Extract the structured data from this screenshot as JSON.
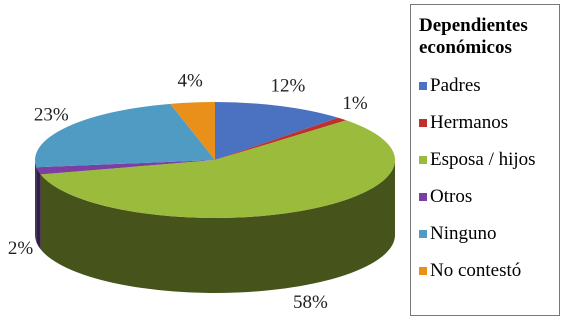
{
  "chart_data": {
    "type": "pie",
    "legend_title": "Dependientes económicos",
    "categories": [
      "Padres",
      "Hermanos",
      "Esposa / hijos",
      "Otros",
      "Ninguno",
      "No contestó"
    ],
    "values": [
      12,
      1,
      58,
      2,
      23,
      4
    ],
    "value_labels": [
      "12%",
      "1%",
      "58%",
      "2%",
      "23%",
      "4%"
    ],
    "colors": [
      "#4a72c0",
      "#c0302a",
      "#9bbb3c",
      "#7a3fa0",
      "#4f9bc4",
      "#e8901a"
    ],
    "legend": "right"
  }
}
